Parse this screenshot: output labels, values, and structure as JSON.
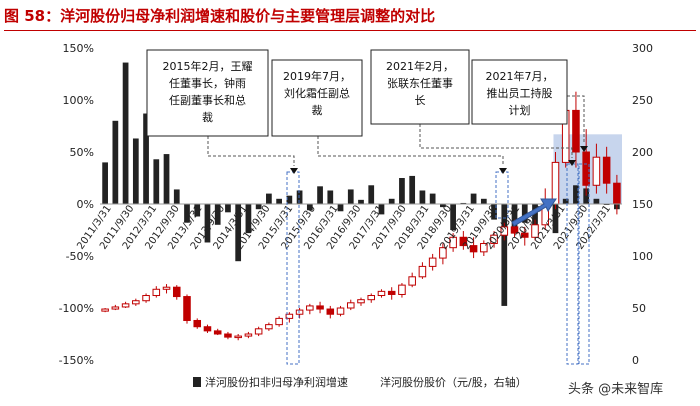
{
  "title": "图 58：洋河股份归母净利润增速和股价与主要管理层调整的对比",
  "watermark": "头条 @未来智库",
  "colors": {
    "bar": "#222222",
    "rise": "#c00000",
    "fall": "#ffffff",
    "title": "#c00000",
    "highlight": "#4472c4"
  },
  "chart_data": {
    "type": "bar+candlestick",
    "y_left": {
      "ticks": [
        "-150%",
        "-100%",
        "-50%",
        "0%",
        "50%",
        "100%",
        "150%"
      ],
      "range": [
        -150,
        150
      ]
    },
    "y_right": {
      "ticks": [
        "0",
        "50",
        "100",
        "150",
        "200",
        "250",
        "300"
      ],
      "range": [
        0,
        300
      ]
    },
    "x_tick_labels": [
      "2011/3/31",
      "2011/9/30",
      "2012/3/31",
      "2012/9/30",
      "2013/3/31",
      "2013/9/30",
      "2014/3/31",
      "2014/9/30",
      "2015/3/31",
      "2015/9/30",
      "2016/3/31",
      "2016/9/30",
      "2017/3/31",
      "2017/9/30",
      "2018/3/31",
      "2018/9/30",
      "2019/3/31",
      "2019/9/30",
      "2020/3/31",
      "2020/9/30",
      "2021/3/31",
      "2021/9/30",
      "2022/3/31"
    ],
    "profit_growth": {
      "name": "洋河股份扣非归母净利润增速",
      "unit": "%",
      "values": [
        40,
        80,
        136,
        63,
        87,
        43,
        48,
        14,
        -18,
        -12,
        -37,
        -20,
        -8,
        -55,
        -28,
        -5,
        10,
        5,
        8,
        13,
        -6,
        17,
        13,
        -7,
        14,
        4,
        18,
        -10,
        5,
        25,
        27,
        13,
        10,
        -3,
        -25,
        1,
        10,
        5,
        -15,
        -98,
        -25,
        -18,
        -30,
        -8,
        -28,
        5,
        18,
        15,
        5,
        0,
        -5
      ]
    },
    "stock_price": {
      "name": "洋河股份股价（元/股，右轴）",
      "ohlc": [
        [
          47,
          49,
          46,
          50
        ],
        [
          49,
          51,
          48,
          53
        ],
        [
          51,
          54,
          50,
          56
        ],
        [
          54,
          57,
          52,
          59
        ],
        [
          57,
          62,
          55,
          64
        ],
        [
          62,
          68,
          60,
          71
        ],
        [
          68,
          70,
          64,
          73
        ],
        [
          70,
          61,
          58,
          72
        ],
        [
          61,
          38,
          35,
          63
        ],
        [
          38,
          32,
          30,
          40
        ],
        [
          32,
          28,
          26,
          34
        ],
        [
          28,
          25,
          24,
          30
        ],
        [
          25,
          22,
          20,
          27
        ],
        [
          22,
          23,
          19,
          25
        ],
        [
          23,
          25,
          21,
          27
        ],
        [
          25,
          30,
          23,
          32
        ],
        [
          30,
          34,
          28,
          36
        ],
        [
          34,
          40,
          32,
          42
        ],
        [
          40,
          44,
          36,
          46
        ],
        [
          44,
          48,
          40,
          50
        ],
        [
          48,
          52,
          44,
          54
        ],
        [
          52,
          49,
          45,
          56
        ],
        [
          49,
          44,
          40,
          52
        ],
        [
          44,
          50,
          42,
          52
        ],
        [
          50,
          55,
          48,
          58
        ],
        [
          55,
          58,
          52,
          60
        ],
        [
          58,
          62,
          55,
          64
        ],
        [
          62,
          66,
          60,
          68
        ],
        [
          66,
          63,
          58,
          70
        ],
        [
          63,
          72,
          60,
          74
        ],
        [
          72,
          80,
          70,
          84
        ],
        [
          80,
          90,
          78,
          94
        ],
        [
          90,
          98,
          86,
          102
        ],
        [
          98,
          108,
          92,
          112
        ],
        [
          108,
          118,
          104,
          122
        ],
        [
          118,
          110,
          106,
          124
        ],
        [
          110,
          104,
          98,
          118
        ],
        [
          104,
          112,
          100,
          115
        ],
        [
          112,
          120,
          108,
          124
        ],
        [
          120,
          128,
          115,
          132
        ],
        [
          128,
          122,
          118,
          135
        ],
        [
          122,
          118,
          110,
          128
        ],
        [
          118,
          130,
          115,
          135
        ],
        [
          130,
          150,
          125,
          165
        ],
        [
          150,
          190,
          145,
          200
        ],
        [
          190,
          240,
          185,
          250
        ],
        [
          240,
          200,
          185,
          258
        ],
        [
          200,
          168,
          158,
          222
        ],
        [
          168,
          195,
          160,
          208
        ],
        [
          195,
          170,
          160,
          205
        ],
        [
          170,
          150,
          140,
          178
        ]
      ]
    },
    "legend": [
      {
        "label": "洋河股份扣非归母净利润增速",
        "kind": "bar"
      },
      {
        "label": "洋河股份股价（元/股，右轴）",
        "kind": "candle"
      }
    ],
    "annotations": [
      {
        "text": "2015年2月，王耀任董事长，钟雨任副董事长和总裁",
        "lines": [
          "2015年2月，王耀",
          "任董事长，钟雨",
          "任副董事长和总",
          "裁"
        ]
      },
      {
        "text": "2019年7月，刘化霜任副总裁",
        "lines": [
          "2019年7月，",
          "刘化霜任副总",
          "裁"
        ]
      },
      {
        "text": "2021年2月，张联东任董事长",
        "lines": [
          "2021年2月，",
          "张联东任董事",
          "长"
        ]
      },
      {
        "text": "2021年7月，推出员工持股计划",
        "lines": [
          "2021年7月，",
          "推出员工持股",
          "计划"
        ]
      }
    ]
  }
}
